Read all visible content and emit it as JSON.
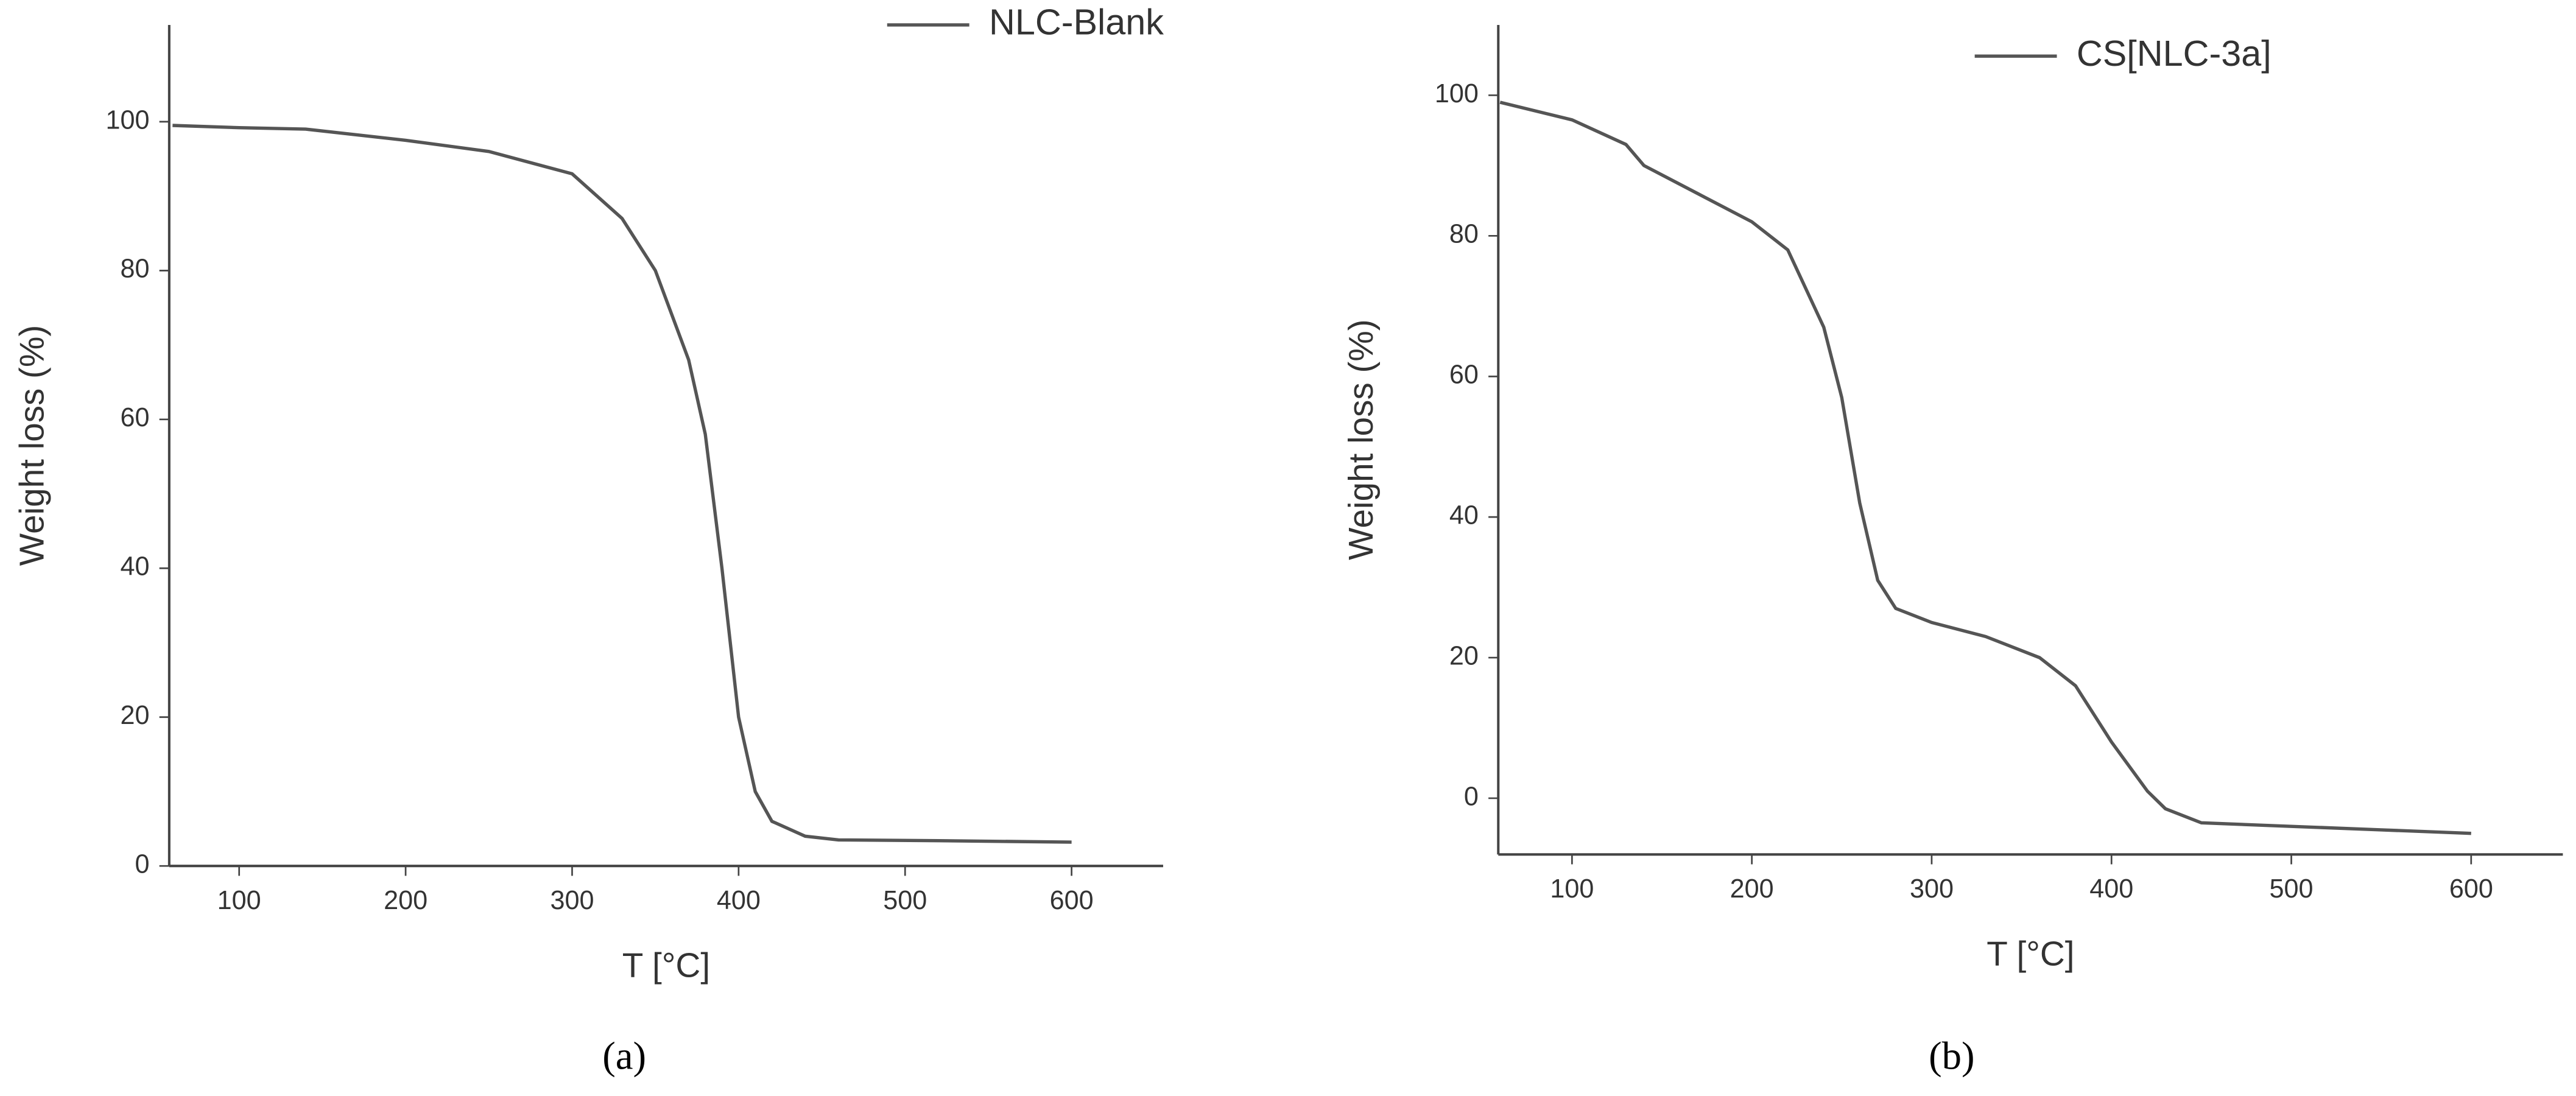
{
  "chart_data": [
    {
      "type": "line",
      "caption": "(a)",
      "x_label": "T [°C]",
      "y_label": "Weight loss (%)",
      "legend": "top-right",
      "xlim": [
        58,
        655
      ],
      "ylim": [
        0,
        113
      ],
      "xticks": [
        100,
        200,
        300,
        400,
        500,
        600
      ],
      "yticks": [
        0,
        20,
        40,
        60,
        80,
        100
      ],
      "x": [
        60,
        100,
        140,
        200,
        250,
        300,
        330,
        350,
        370,
        380,
        390,
        400,
        410,
        420,
        440,
        460,
        520,
        600
      ],
      "series": [
        {
          "name": "NLC-Blank",
          "color": "#555555",
          "values": [
            99.5,
            99.2,
            99,
            97.5,
            96,
            93,
            87,
            80,
            68,
            58,
            40,
            20,
            10,
            6,
            4,
            3.5,
            3.4,
            3.2
          ]
        }
      ]
    },
    {
      "type": "line",
      "caption": "(b)",
      "x_label": "T [°C]",
      "y_label": "Weight loss (%)",
      "legend": "top-right",
      "xlim": [
        59,
        651
      ],
      "ylim": [
        -8,
        110
      ],
      "xticks": [
        100,
        200,
        300,
        400,
        500,
        600
      ],
      "yticks": [
        0,
        20,
        40,
        60,
        80,
        100
      ],
      "x": [
        60,
        100,
        130,
        140,
        170,
        200,
        220,
        240,
        250,
        260,
        270,
        280,
        300,
        330,
        360,
        380,
        400,
        420,
        430,
        450,
        500,
        550,
        600
      ],
      "series": [
        {
          "name": "CS[NLC-3a]",
          "color": "#555555",
          "values": [
            99,
            96.5,
            93,
            90,
            86,
            82,
            78,
            67,
            57,
            42,
            31,
            27,
            25,
            23,
            20,
            16,
            8,
            1,
            -1.5,
            -3.5,
            -4,
            -4.5,
            -5
          ]
        }
      ]
    }
  ]
}
